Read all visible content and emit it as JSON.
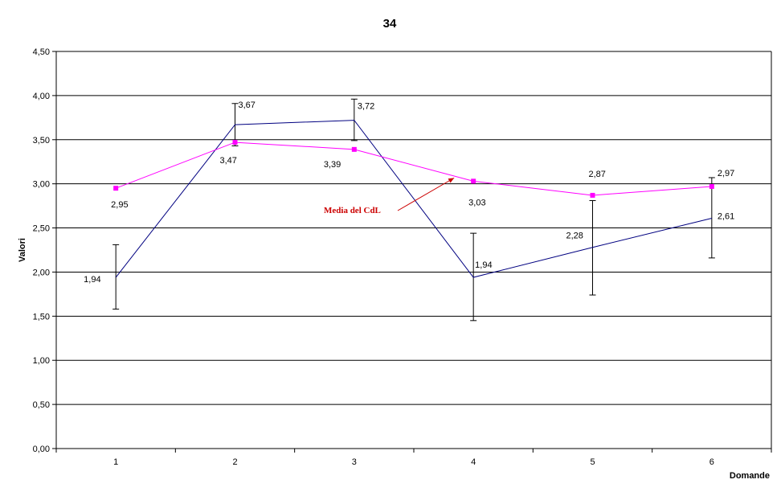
{
  "chart_data": {
    "type": "line",
    "title": "34",
    "xlabel": "Domande",
    "ylabel": "Valori",
    "categories": [
      "1",
      "2",
      "3",
      "4",
      "5",
      "6"
    ],
    "ylim": [
      0,
      4.5
    ],
    "yticks": [
      "0,00",
      "0,50",
      "1,00",
      "1,50",
      "2,00",
      "2,50",
      "3,00",
      "3,50",
      "4,00",
      "4,50"
    ],
    "grid": true,
    "series": [
      {
        "values": [
          1.94,
          3.67,
          3.72,
          1.94,
          2.28,
          2.61
        ],
        "labels": [
          "1,94",
          "3,67",
          "3,72",
          "1,94",
          "2,28",
          "2,61"
        ],
        "error_low": [
          1.58,
          3.43,
          3.49,
          1.45,
          1.74,
          2.16
        ],
        "error_high": [
          2.31,
          3.91,
          3.96,
          2.44,
          2.81,
          3.07
        ],
        "color": "#000080"
      },
      {
        "name": "Media del CdL",
        "values": [
          2.95,
          3.47,
          3.39,
          3.03,
          2.87,
          2.97
        ],
        "labels": [
          "2,95",
          "3,47",
          "3,39",
          "3,03",
          "2,87",
          "2,97"
        ],
        "color": "#ff00ff"
      }
    ],
    "annotation": {
      "text": "Media del CdL",
      "color": "#cc0000",
      "points_to_category": "4",
      "points_to_series": 1
    }
  }
}
